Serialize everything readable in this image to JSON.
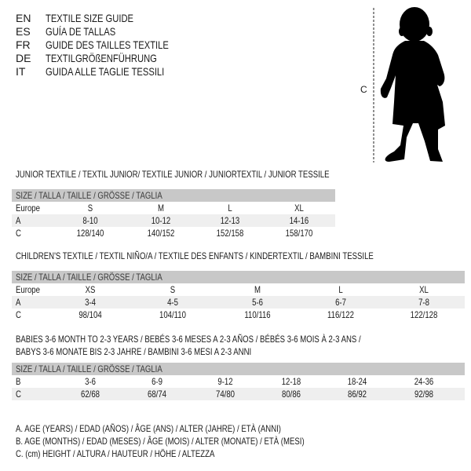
{
  "languages": [
    {
      "code": "EN",
      "title": "TEXTILE SIZE GUIDE"
    },
    {
      "code": "ES",
      "title": "GUÍA DE TALLAS"
    },
    {
      "code": "FR",
      "title": "GUIDE DES TAILLES TEXTILE"
    },
    {
      "code": "DE",
      "title": "TEXTILGRÖßENFÜHRUNG"
    },
    {
      "code": "IT",
      "title": "GUIDA ALLE TAGLIE TESSILI"
    }
  ],
  "figure": {
    "measure_label": "C",
    "icon": "baby-silhouette"
  },
  "size_header": "SIZE / TALLA / TAILLE / GRÖSSE / TAGLIA",
  "tables": [
    {
      "title": "JUNIOR TEXTILE / TEXTIL JUNIOR/ TEXTILE JUNIOR / JUNIORTEXTIL / JUNIOR TESSILE",
      "rows": [
        {
          "label": "Europe",
          "values": [
            "S",
            "M",
            "L",
            "XL"
          ]
        },
        {
          "label": "A",
          "values": [
            "8-10",
            "10-12",
            "12-13",
            "14-16"
          ]
        },
        {
          "label": "C",
          "values": [
            "128/140",
            "140/152",
            "152/158",
            "158/170"
          ]
        }
      ]
    },
    {
      "title": "CHILDREN'S TEXTILE / TEXTIL NIÑO/A / TEXTILE DES ENFANTS / KINDERTEXTIL / BAMBINI TESSILE",
      "rows": [
        {
          "label": "Europe",
          "values": [
            "XS",
            "S",
            "M",
            "L",
            "XL"
          ]
        },
        {
          "label": "A",
          "values": [
            "3-4",
            "4-5",
            "5-6",
            "6-7",
            "7-8"
          ]
        },
        {
          "label": "C",
          "values": [
            "98/104",
            "104/110",
            "110/116",
            "116/122",
            "122/128"
          ]
        }
      ]
    },
    {
      "title": "BABIES 3-6 MONTH TO 2-3 YEARS / BEBÉS 3-6 MESES A 2-3 AÑOS / BÉBÉS 3-6 MOIS À 2-3 ANS /",
      "title2": "BABYS 3-6 MONATE BIS 2-3 JAHRE / BAMBINI 3-6 MESI A 2-3 ANNI",
      "rows": [
        {
          "label": "B",
          "values": [
            "3-6",
            "6-9",
            "9-12",
            "12-18",
            "18-24",
            "24-36"
          ]
        },
        {
          "label": "C",
          "values": [
            "62/68",
            "68/74",
            "74/80",
            "80/86",
            "86/92",
            "92/98"
          ]
        }
      ]
    }
  ],
  "legend": [
    "A. AGE (YEARS) / EDAD (AÑOS) / ÂGE (ANS) / ALTER (JAHRE) / ETÀ (ANNI)",
    "B. AGE (MONTHS) / EDAD (MESES) / ÂGE (MOIS) / ALTER (MONATE) / ETÀ (MESI)",
    "C. (cm) HEIGHT / ALTURA / HAUTEUR / HÖHE / ALTEZZA"
  ],
  "colors": {
    "header_bg": "#c8c8c8",
    "alt_row_bg": "#efefef",
    "text": "#1a1a1a"
  }
}
